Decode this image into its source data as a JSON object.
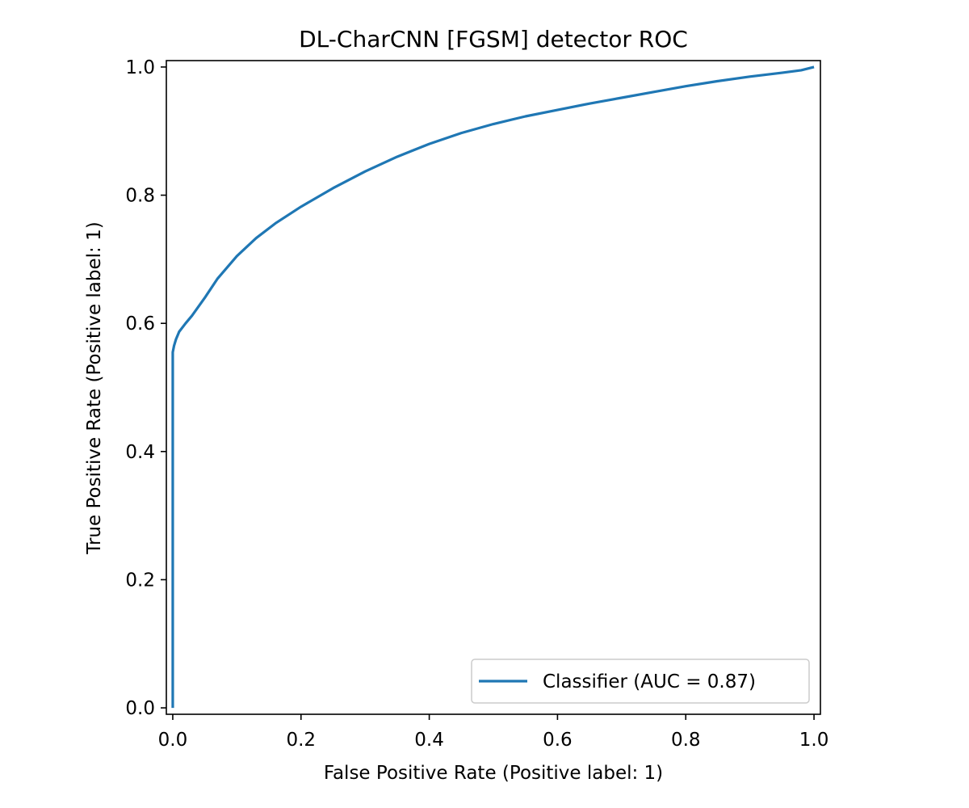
{
  "chart_data": {
    "type": "line",
    "title": "DL-CharCNN [FGSM] detector ROC",
    "xlabel": "False Positive Rate (Positive label: 1)",
    "ylabel": "True Positive Rate (Positive label: 1)",
    "xlim": [
      -0.01,
      1.01
    ],
    "ylim": [
      -0.01,
      1.01
    ],
    "xticks": [
      0.0,
      0.2,
      0.4,
      0.6,
      0.8,
      1.0
    ],
    "xtick_labels": [
      "0.0",
      "0.2",
      "0.4",
      "0.6",
      "0.8",
      "1.0"
    ],
    "yticks": [
      0.0,
      0.2,
      0.4,
      0.6,
      0.8,
      1.0
    ],
    "ytick_labels": [
      "0.0",
      "0.2",
      "0.4",
      "0.6",
      "0.8",
      "1.0"
    ],
    "grid": false,
    "legend_position": "lower-right",
    "series": [
      {
        "name": "Classifier (AUC = 0.87)",
        "color": "#1f77b4",
        "x": [
          0.0,
          0.0,
          0.002,
          0.005,
          0.01,
          0.02,
          0.03,
          0.05,
          0.07,
          0.1,
          0.13,
          0.16,
          0.2,
          0.25,
          0.3,
          0.35,
          0.4,
          0.45,
          0.5,
          0.55,
          0.6,
          0.65,
          0.7,
          0.75,
          0.8,
          0.85,
          0.9,
          0.95,
          0.98,
          1.0
        ],
        "y": [
          0.0,
          0.555,
          0.565,
          0.575,
          0.587,
          0.6,
          0.612,
          0.64,
          0.67,
          0.705,
          0.733,
          0.756,
          0.782,
          0.811,
          0.837,
          0.86,
          0.88,
          0.897,
          0.911,
          0.923,
          0.933,
          0.943,
          0.952,
          0.961,
          0.97,
          0.978,
          0.985,
          0.991,
          0.995,
          1.0
        ]
      }
    ]
  }
}
